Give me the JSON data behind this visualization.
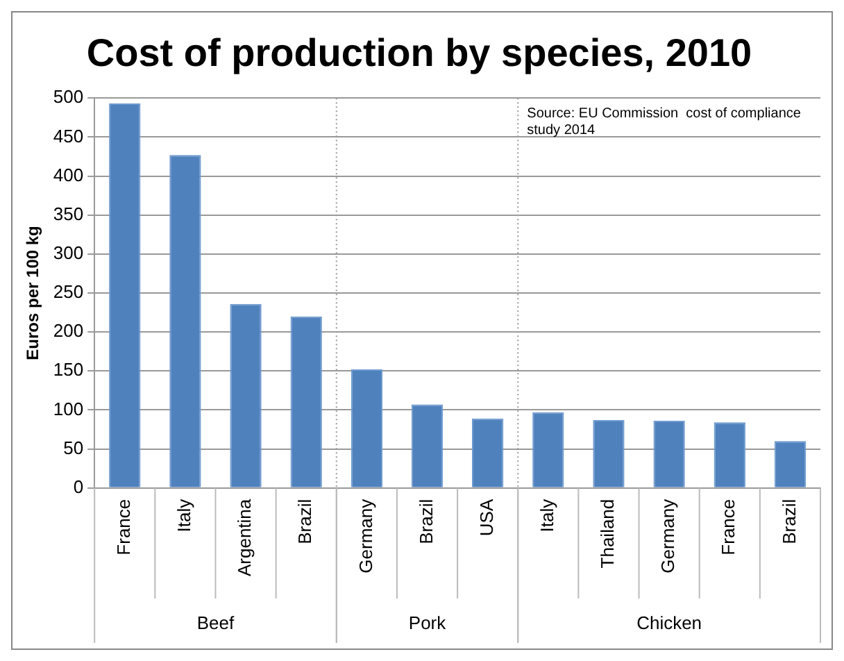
{
  "chart_data": {
    "type": "bar",
    "title": "Cost of production by species, 2010",
    "ylabel": "Euros per 100 kg",
    "categories": [
      "France",
      "Italy",
      "Argentina",
      "Brazil",
      "Germany",
      "Brazil",
      "USA",
      "Italy",
      "Thailand",
      "Germany",
      "France",
      "Brazil"
    ],
    "values": [
      493,
      427,
      236,
      220,
      152,
      107,
      89,
      97,
      87,
      86,
      84,
      60
    ],
    "color": "#4f81bd",
    "ylim": [
      0,
      500
    ],
    "yticks": [
      0,
      50,
      100,
      150,
      200,
      250,
      300,
      350,
      400,
      450,
      500
    ],
    "grid": "y",
    "annotations": [
      "Source: EU Commission  cost of compliance study 2014",
      "Beef",
      "Pork",
      "Chicken"
    ]
  }
}
